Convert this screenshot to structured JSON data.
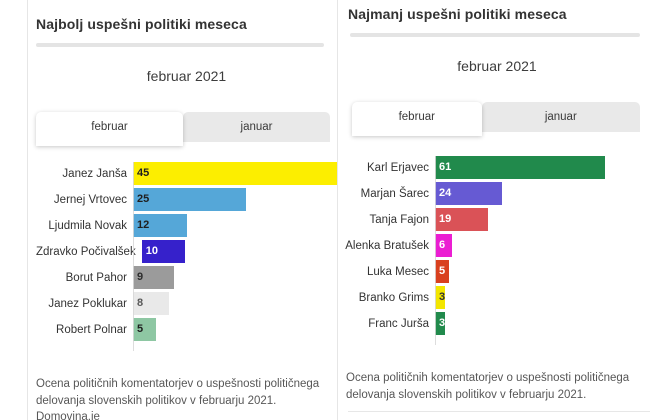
{
  "panels": [
    {
      "title": "Najbolj uspešni politiki meseca",
      "subtitle": "februar 2021",
      "tabs": [
        {
          "label": "februar",
          "active": true
        },
        {
          "label": "januar",
          "active": false
        }
      ],
      "footer": "Ocena političnih komentatorjev o uspešnosti političnega delovanja slovenskih politikov v februarju 2021. Domovina.je",
      "chart_data": {
        "type": "bar",
        "orientation": "horizontal",
        "title": "februar 2021",
        "xmax": 45,
        "grid": false,
        "categories": [
          "Janez Janša",
          "Jernej Vrtovec",
          "Ljudmila Novak",
          "Zdravko Počivalšek",
          "Borut Pahor",
          "Janez Poklukar",
          "Robert Polnar"
        ],
        "values": [
          45,
          25,
          12,
          10,
          9,
          8,
          5
        ],
        "bar_colors": [
          "#fcee00",
          "#55a7d8",
          "#55a7d8",
          "#3621cb",
          "#9b9b9b",
          "#e9e9e9",
          "#8ec7a3"
        ],
        "value_label_colors": [
          "#1f1f1f",
          "#1f1f1f",
          "#1f1f1f",
          "#ffffff",
          "#2e2e2e",
          "#5a5a5a",
          "#1f1f1f"
        ]
      }
    },
    {
      "title": "Najmanj uspešni politiki meseca",
      "subtitle": "februar 2021",
      "tabs": [
        {
          "label": "februar",
          "active": true
        },
        {
          "label": "januar",
          "active": false
        }
      ],
      "footer": "Ocena političnih komentatorjev o uspešnosti političnega delovanja slovenskih politikov v februarju 2021.",
      "chart_data": {
        "type": "bar",
        "orientation": "horizontal",
        "title": "februar 2021",
        "xmax": 61,
        "grid": false,
        "categories": [
          "Karl Erjavec",
          "Marjan Šarec",
          "Tanja Fajon",
          "Alenka Bratušek",
          "Luka Mesec",
          "Branko Grims",
          "Franc Jurša"
        ],
        "values": [
          61,
          24,
          19,
          6,
          5,
          3,
          3
        ],
        "bar_colors": [
          "#218a4c",
          "#665ad3",
          "#da5257",
          "#eb1ed2",
          "#d9401e",
          "#f3e600",
          "#218a4c"
        ],
        "value_label_colors": [
          "#ffffff",
          "#ffffff",
          "#ffffff",
          "#ffffff",
          "#ffffff",
          "#333333",
          "#ffffff"
        ]
      }
    }
  ]
}
